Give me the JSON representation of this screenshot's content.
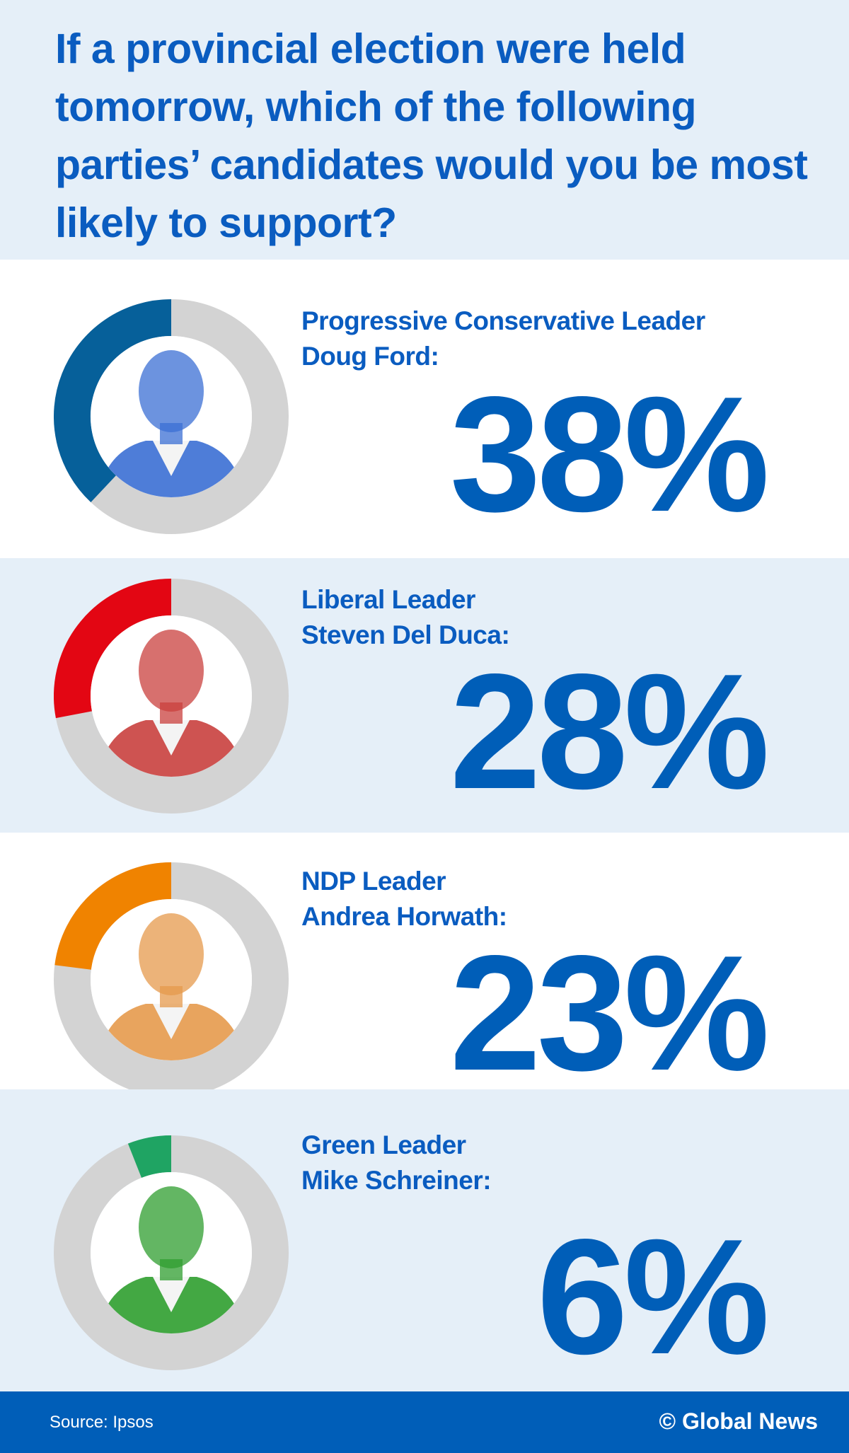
{
  "title": "If a provincial election were held tomorrow, which of the following parties’ candidates would you be most likely to support?",
  "chart_data": {
    "type": "pie",
    "subtype": "donut",
    "title": "If a provincial election were held tomorrow, which of the following parties’ candidates would you be most likely to support?",
    "unit": "%",
    "remainder_color": "#d3d3d3",
    "items": [
      {
        "label_line1": "Progressive Conservative Leader",
        "label_line2": "Doug Ford:",
        "value": 38,
        "display": "38%",
        "color": "#06609a",
        "photo_tint": "#3b6fd4"
      },
      {
        "label_line1": "Liberal Leader",
        "label_line2": "Steven Del Duca:",
        "value": 28,
        "display": "28%",
        "color": "#e30613",
        "photo_tint": "#c9403e"
      },
      {
        "label_line1": "NDP Leader",
        "label_line2": "Andrea Horwath:",
        "value": 23,
        "display": "23%",
        "color": "#f08300",
        "photo_tint": "#e59a4c"
      },
      {
        "label_line1": "Green Leader",
        "label_line2": "Mike Schreiner:",
        "value": 6,
        "display": "6%",
        "color": "#1fa463",
        "photo_tint": "#2f9e2f"
      }
    ]
  },
  "footer": {
    "source": "Source: Ipsos",
    "credit": "© Global News"
  },
  "colors": {
    "accent": "#005eb8",
    "band": "#e5eff8"
  }
}
